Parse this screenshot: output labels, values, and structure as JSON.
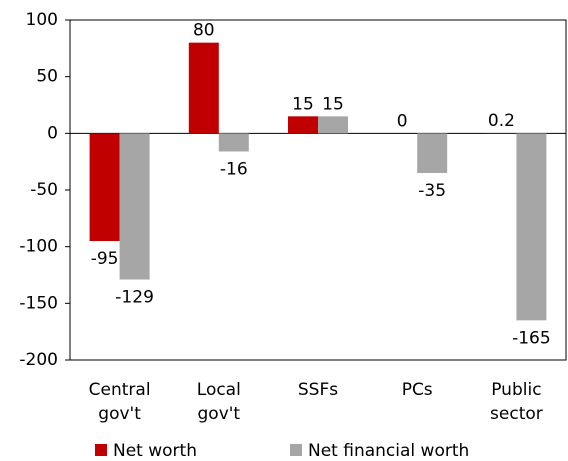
{
  "chart_data": {
    "type": "bar",
    "categories": [
      "Central gov't",
      "Local gov't",
      "SSFs",
      "PCs",
      "Public sector"
    ],
    "series": [
      {
        "name": "Net worth",
        "color": "#c00000",
        "values": [
          -95,
          80,
          15,
          0,
          0.2
        ]
      },
      {
        "name": "Net financial worth",
        "color": "#a6a6a6",
        "values": [
          -129,
          -16,
          15,
          -35,
          -165
        ]
      }
    ],
    "ylim": [
      -200,
      100
    ],
    "yticks": [
      -200,
      -150,
      -100,
      -50,
      0,
      50,
      100
    ]
  }
}
